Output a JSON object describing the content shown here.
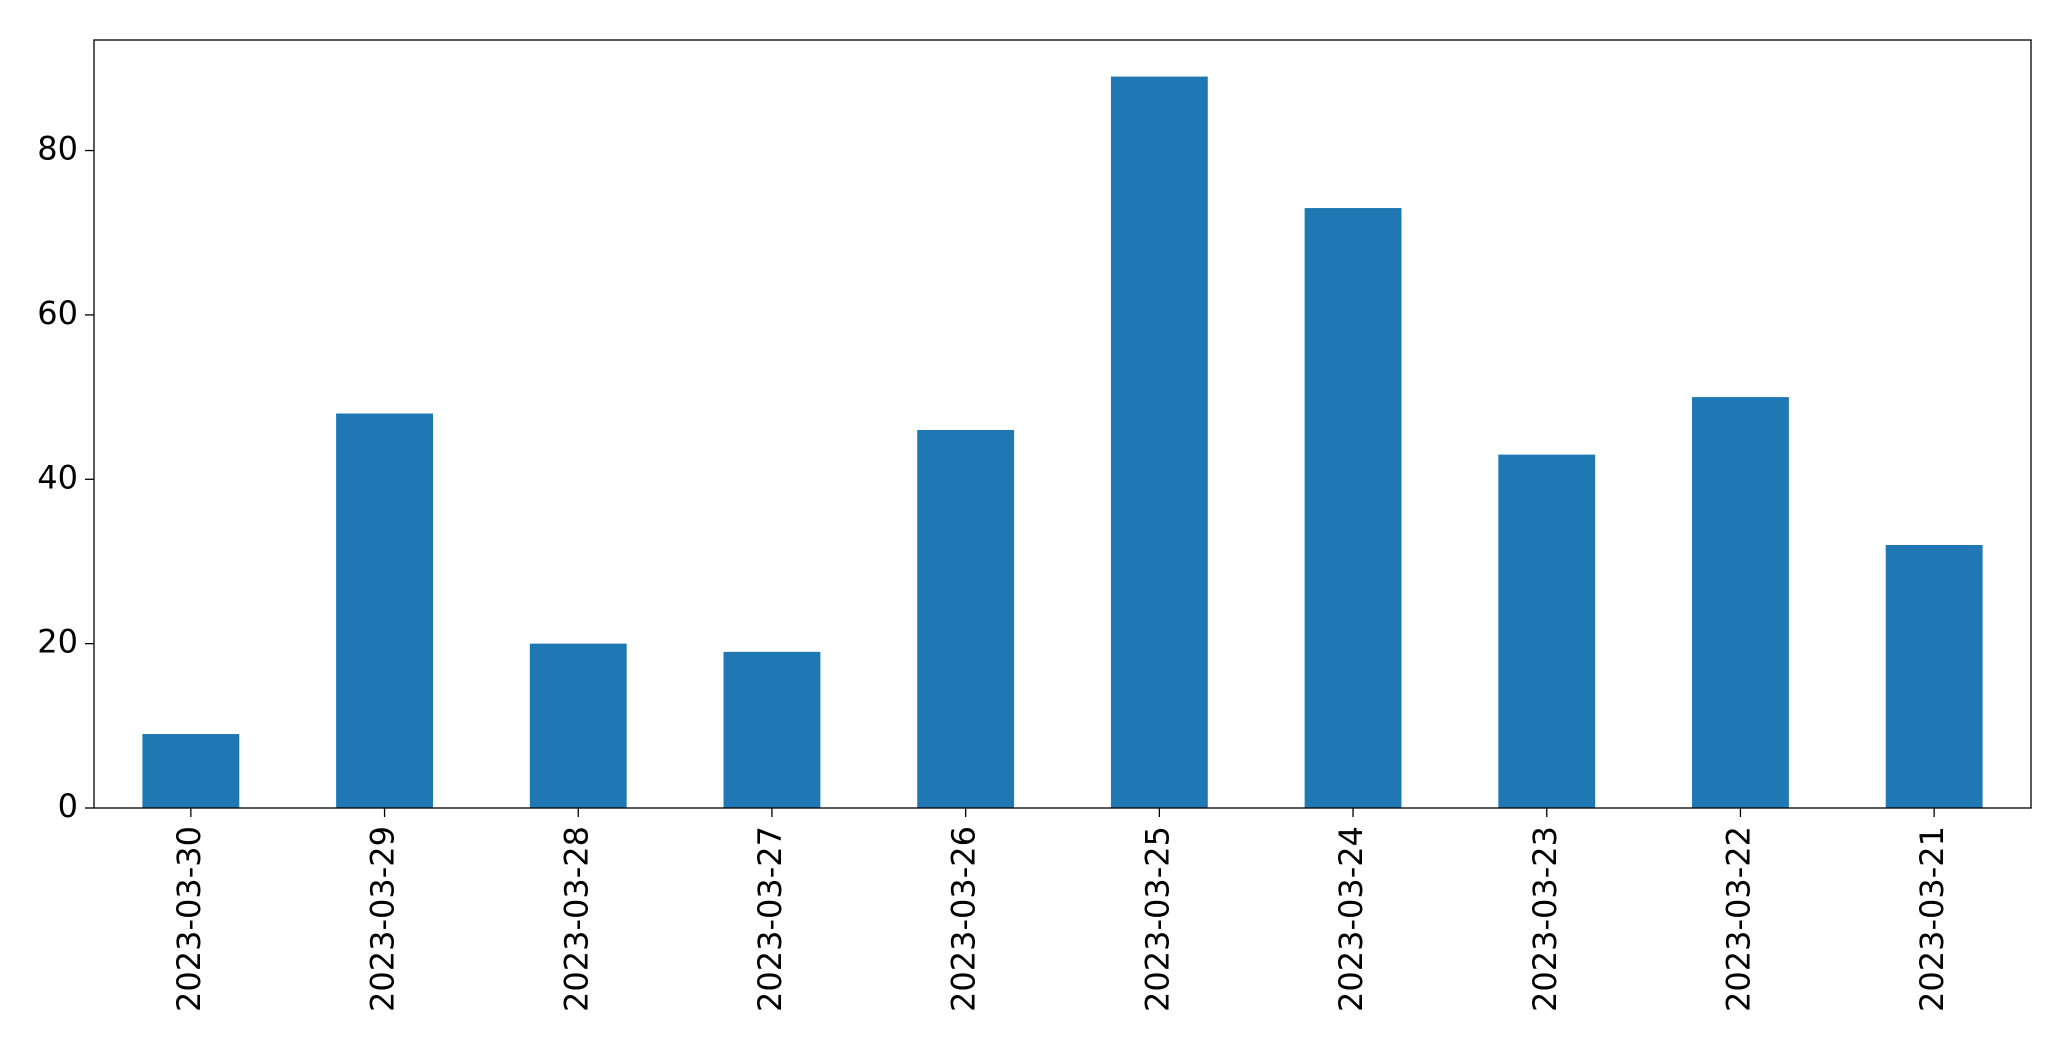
{
  "chart_data": {
    "type": "bar",
    "categories": [
      "2023-03-30",
      "2023-03-29",
      "2023-03-28",
      "2023-03-27",
      "2023-03-26",
      "2023-03-25",
      "2023-03-24",
      "2023-03-23",
      "2023-03-22",
      "2023-03-21"
    ],
    "values": [
      9,
      48,
      20,
      19,
      46,
      89,
      73,
      43,
      50,
      32
    ],
    "color": "#1f77b4",
    "ylim": [
      0,
      93.45
    ],
    "yticks": [
      0,
      20,
      40,
      60,
      80
    ],
    "grid": false
  }
}
